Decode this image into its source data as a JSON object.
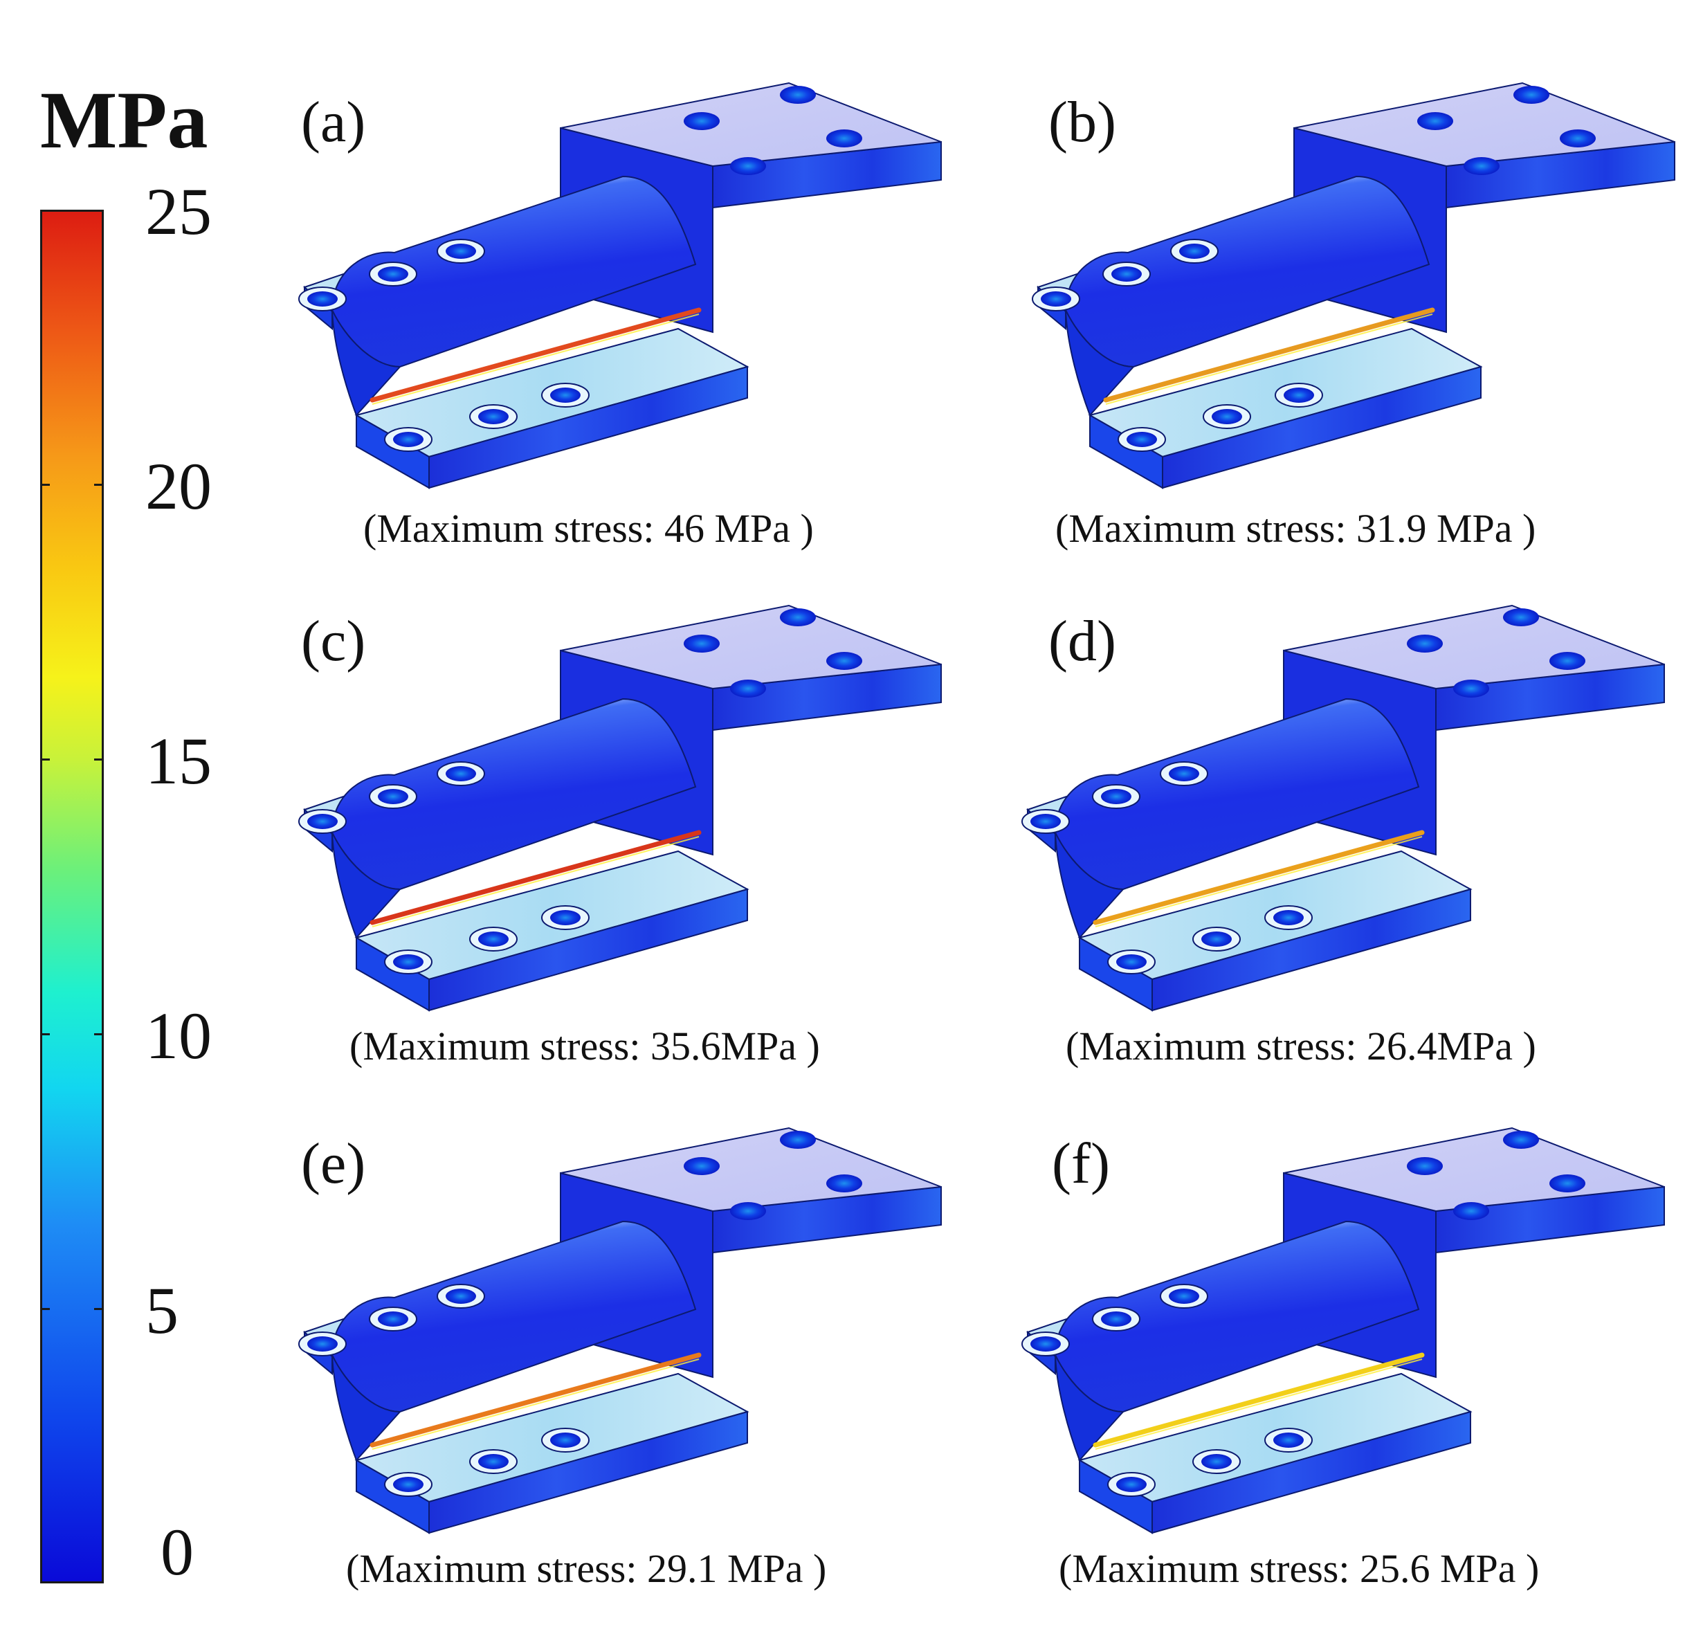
{
  "colorbar": {
    "unit": "MPa",
    "ticks": [
      "25",
      "20",
      "15",
      "10",
      "5",
      "0"
    ],
    "range": [
      0,
      25
    ],
    "colors": {
      "min": "#0a0ad8",
      "low": "#1e8cf5",
      "mid_low": "#12d6f0",
      "mid": "#6cf07a",
      "mid_high": "#f6f21a",
      "high": "#f69a18",
      "max": "#dd1d12"
    }
  },
  "panels": [
    {
      "label": "(a)",
      "caption": "(Maximum stress: 46 MPa )",
      "max_stress_MPa": 46,
      "hotspot_color": "#e24a1e"
    },
    {
      "label": "(b)",
      "caption": "(Maximum stress: 31.9 MPa )",
      "max_stress_MPa": 31.9,
      "hotspot_color": "#e79a20"
    },
    {
      "label": "(c)",
      "caption": "(Maximum stress: 35.6MPa )",
      "max_stress_MPa": 35.6,
      "hotspot_color": "#d8361a"
    },
    {
      "label": "(d)",
      "caption": "(Maximum stress: 26.4MPa )",
      "max_stress_MPa": 26.4,
      "hotspot_color": "#eaa01c"
    },
    {
      "label": "(e)",
      "caption": "(Maximum stress: 29.1 MPa )",
      "max_stress_MPa": 29.1,
      "hotspot_color": "#e87a1c"
    },
    {
      "label": "(f)",
      "caption": "(Maximum stress: 25.6 MPa )",
      "max_stress_MPa": 25.6,
      "hotspot_color": "#f2cf1a"
    }
  ]
}
